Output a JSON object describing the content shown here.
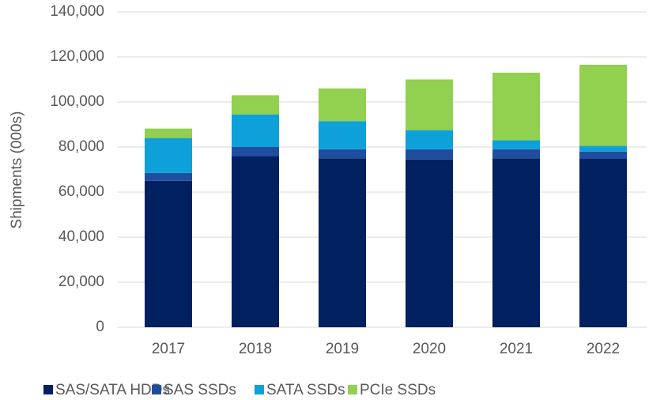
{
  "chart_data": {
    "type": "stacked_bar",
    "y_label": "Shipments (000s)",
    "categories": [
      "2017",
      "2018",
      "2019",
      "2020",
      "2021",
      "2022"
    ],
    "series": [
      {
        "name": "SAS/SATA HDDs",
        "color": "#002060",
        "values": [
          65000,
          76000,
          75000,
          74500,
          75000,
          75000
        ]
      },
      {
        "name": "SAS SSDs",
        "color": "#1f4e9f",
        "values": [
          3500,
          4000,
          4000,
          4500,
          4000,
          3000
        ]
      },
      {
        "name": "SATA SSDs",
        "color": "#0ea0d8",
        "values": [
          15500,
          14500,
          12500,
          8500,
          4000,
          2500
        ]
      },
      {
        "name": "PCIe SSDs",
        "color": "#92d050",
        "values": [
          4200,
          8500,
          14500,
          22500,
          30000,
          36000
        ]
      }
    ],
    "ylim": [
      0,
      140000
    ],
    "yticks": [
      0,
      {
        "value": 20000,
        "label": "20,000"
      },
      {
        "value": 40000,
        "label": "40,000"
      },
      {
        "value": 60000,
        "label": "60,000"
      },
      {
        "value": 80000,
        "label": "80,000"
      },
      {
        "value": 100000,
        "label": "100,000"
      },
      {
        "value": 120000,
        "label": "120,000"
      },
      {
        "value": 140000,
        "label": "140,000"
      }
    ],
    "grid": true
  }
}
